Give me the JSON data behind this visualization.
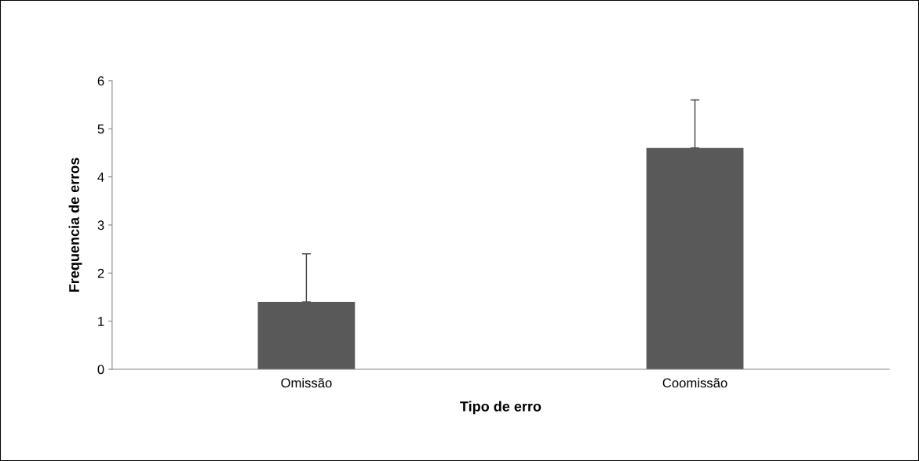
{
  "chart_data": {
    "type": "bar",
    "xlabel": "Tipo de erro",
    "ylabel": "Frequencia de erros",
    "categories": [
      "Omissão",
      "Coomissão"
    ],
    "values": [
      1.4,
      4.6
    ],
    "errors": [
      [
        1.4,
        2.4
      ],
      [
        4.6,
        5.6
      ]
    ],
    "color": "#595959",
    "ylim": [
      0,
      6
    ],
    "yticks": [
      0,
      1,
      2,
      3,
      4,
      5,
      6
    ],
    "grid": false,
    "legend": false
  }
}
